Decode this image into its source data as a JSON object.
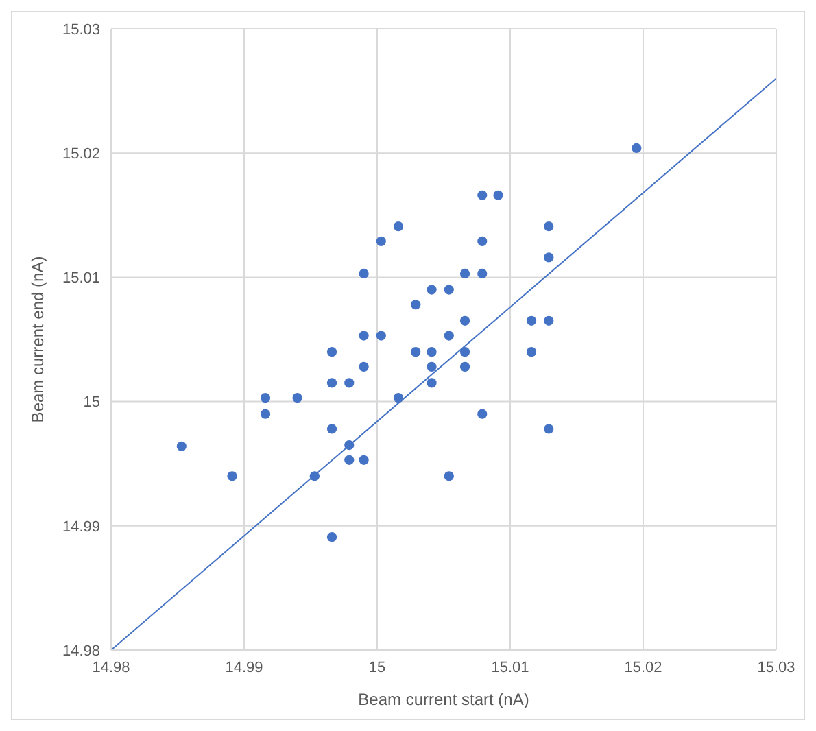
{
  "chart_data": {
    "type": "scatter",
    "xlabel": "Beam current start (nA)",
    "ylabel": "Beam current end (nA)",
    "xlim": [
      14.98,
      15.03
    ],
    "xticks": [
      14.98,
      14.99,
      15,
      15.01,
      15.02,
      15.03
    ],
    "ylim": [
      14.98,
      15.03
    ],
    "yticks": [
      14.98,
      14.99,
      15,
      15.01,
      15.02,
      15.03
    ],
    "grid": true,
    "legend": false,
    "series": [
      {
        "color": "#4472c4",
        "marker": "circle",
        "x": [
          14.9853,
          14.9891,
          14.9916,
          14.9916,
          14.994,
          14.9953,
          14.9966,
          14.9966,
          14.9966,
          14.9966,
          14.9979,
          14.9979,
          14.9979,
          14.999,
          14.999,
          14.999,
          14.999,
          15.0003,
          15.0003,
          15.0016,
          15.0016,
          15.0029,
          15.0029,
          15.0041,
          15.0041,
          15.0041,
          15.0041,
          15.0054,
          15.0054,
          15.0054,
          15.0066,
          15.0066,
          15.0066,
          15.0066,
          15.0079,
          15.0079,
          15.0079,
          15.0079,
          15.0091,
          15.0116,
          15.0116,
          15.0129,
          15.0129,
          15.0129,
          15.0129,
          15.0195
        ],
        "values": [
          14.9964,
          14.994,
          15.0003,
          14.999,
          15.0003,
          14.994,
          15.004,
          15.0015,
          14.9978,
          14.9891,
          15.0015,
          14.9965,
          14.9953,
          15.0103,
          15.0053,
          15.0028,
          14.9953,
          15.0129,
          15.0053,
          15.0141,
          15.0003,
          15.0078,
          15.004,
          15.009,
          15.004,
          15.0028,
          15.0015,
          15.009,
          15.0053,
          14.994,
          15.0103,
          15.0065,
          15.004,
          15.0028,
          15.0166,
          15.0129,
          15.0103,
          14.999,
          15.0166,
          15.0065,
          15.004,
          15.0141,
          15.0116,
          15.0065,
          14.9978,
          15.0204
        ]
      },
      {
        "type": "line",
        "color": "#4472c4",
        "marker": "none",
        "line_style": "solid",
        "x": [
          14.98,
          15.03
        ],
        "values": [
          14.98,
          15.026
        ]
      }
    ]
  }
}
